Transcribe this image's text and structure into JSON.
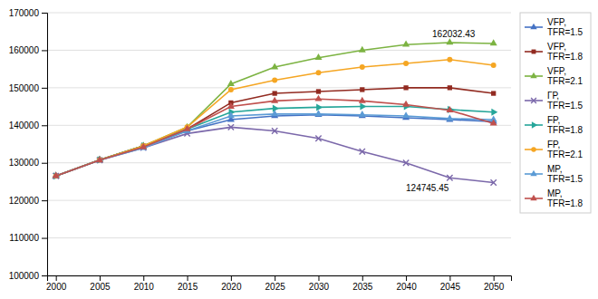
{
  "chart_data": {
    "type": "line",
    "x": [
      2000,
      2005,
      2010,
      2015,
      2020,
      2025,
      2030,
      2035,
      2040,
      2045,
      2050
    ],
    "series": [
      {
        "name": "VFP,\nTFR=1.5",
        "color": "#4472C4",
        "marker": "triangle-up",
        "values": [
          126500,
          130800,
          134500,
          138500,
          141500,
          142500,
          142800,
          142500,
          142000,
          141500,
          141000
        ]
      },
      {
        "name": "VFP,\nTFR=1.8",
        "color": "#922B21",
        "marker": "square",
        "values": [
          126500,
          130800,
          134500,
          139000,
          146000,
          148500,
          149000,
          149500,
          150000,
          150000,
          148500
        ]
      },
      {
        "name": "VFP,\nTFR=2.1",
        "color": "#7CB342",
        "marker": "triangle-up",
        "values": [
          126500,
          130800,
          134500,
          139500,
          151000,
          155500,
          158000,
          160000,
          161500,
          162032,
          161800
        ]
      },
      {
        "name": "ГР,\nTFR=1.5",
        "color": "#7B68AA",
        "marker": "x",
        "values": [
          126500,
          130700,
          134000,
          137800,
          139500,
          138500,
          136500,
          133000,
          130000,
          126000,
          124745
        ]
      },
      {
        "name": "FP,\nTFR=1.8",
        "color": "#26A69A",
        "marker": "triangle-right",
        "values": [
          126500,
          130800,
          134500,
          139000,
          143500,
          144500,
          144800,
          145000,
          145000,
          144200,
          143500
        ]
      },
      {
        "name": "FP,\nTFR=2.1",
        "color": "#F5A623",
        "marker": "circle",
        "values": [
          126500,
          130800,
          134500,
          139500,
          149500,
          152000,
          154000,
          155500,
          156500,
          157500,
          156000
        ]
      },
      {
        "name": "MP,\nTFR=1.5",
        "color": "#5B9BD5",
        "marker": "triangle-up",
        "values": [
          126500,
          130700,
          134000,
          138500,
          142500,
          143000,
          143000,
          142800,
          142500,
          141800,
          141500
        ]
      },
      {
        "name": "MP,\nTFR=1.8",
        "color": "#C0504D",
        "marker": "triangle-up",
        "values": [
          126500,
          130700,
          134200,
          139000,
          145000,
          146500,
          147000,
          146500,
          145500,
          144000,
          140500
        ]
      }
    ],
    "annotations": [
      {
        "text": "162032.43",
        "x": 2043,
        "y": 163500
      },
      {
        "text": "124745.45",
        "x": 2040,
        "y": 122500
      }
    ],
    "xlim": [
      1999,
      2052
    ],
    "xticks": [
      2000,
      2005,
      2010,
      2015,
      2020,
      2025,
      2030,
      2035,
      2040,
      2045,
      2050
    ],
    "ylim": [
      100000,
      170000
    ],
    "yticks": [
      100000,
      110000,
      120000,
      130000,
      140000,
      150000,
      160000,
      170000
    ],
    "grid": true,
    "legend": "right"
  }
}
